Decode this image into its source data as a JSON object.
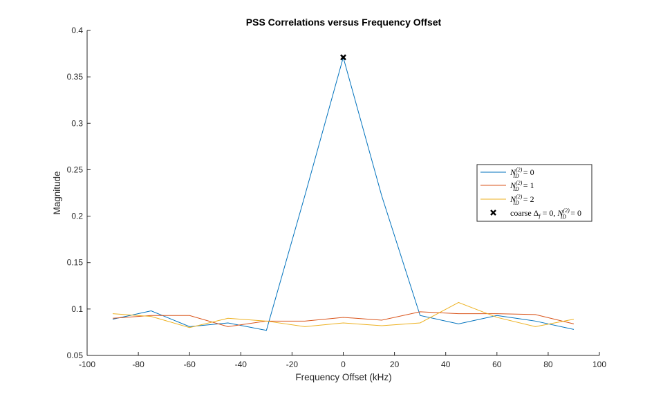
{
  "chart_data": {
    "type": "line",
    "title": "PSS Correlations versus Frequency Offset",
    "xlabel": "Frequency Offset (kHz)",
    "ylabel": "Magnitude",
    "xlim": [
      -100,
      100
    ],
    "ylim": [
      0.05,
      0.4
    ],
    "xticks": [
      -100,
      -80,
      -60,
      -40,
      -20,
      0,
      20,
      40,
      60,
      80,
      100
    ],
    "yticks": [
      0.05,
      0.1,
      0.15,
      0.2,
      0.25,
      0.3,
      0.35,
      0.4
    ],
    "xtick_labels": [
      "-100",
      "-80",
      "-60",
      "-40",
      "-20",
      "0",
      "20",
      "40",
      "60",
      "80",
      "100"
    ],
    "ytick_labels": [
      "0.05",
      "0.1",
      "0.15",
      "0.2",
      "0.25",
      "0.3",
      "0.35",
      "0.4"
    ],
    "x": [
      -90,
      -75,
      -60,
      -45,
      -30,
      -15,
      0,
      15,
      30,
      45,
      60,
      75,
      90
    ],
    "series": [
      {
        "name": "N_ID^(2) = 0",
        "color": "#0072BD",
        "values": [
          0.089,
          0.098,
          0.081,
          0.085,
          0.077,
          0.222,
          0.371,
          0.222,
          0.093,
          0.084,
          0.093,
          0.087,
          0.078
        ]
      },
      {
        "name": "N_ID^(2) = 1",
        "color": "#D95319",
        "values": [
          0.09,
          0.093,
          0.093,
          0.081,
          0.087,
          0.087,
          0.091,
          0.088,
          0.097,
          0.095,
          0.095,
          0.094,
          0.084
        ]
      },
      {
        "name": "N_ID^(2) = 2",
        "color": "#EDB120",
        "values": [
          0.095,
          0.092,
          0.08,
          0.09,
          0.087,
          0.081,
          0.085,
          0.082,
          0.085,
          0.107,
          0.091,
          0.081,
          0.089
        ]
      }
    ],
    "marker": {
      "name": "coarse Δ_f = 0, N_ID^(2) = 0",
      "x": 0,
      "y": 0.371,
      "symbol": "x",
      "color": "#000000"
    },
    "legend": {
      "position": "right",
      "entries": [
        {
          "prefix": "",
          "value": "0"
        },
        {
          "prefix": "",
          "value": "1"
        },
        {
          "prefix": "",
          "value": "2"
        },
        {
          "prefix": "coarse",
          "value": "0"
        }
      ]
    },
    "grid": false
  }
}
